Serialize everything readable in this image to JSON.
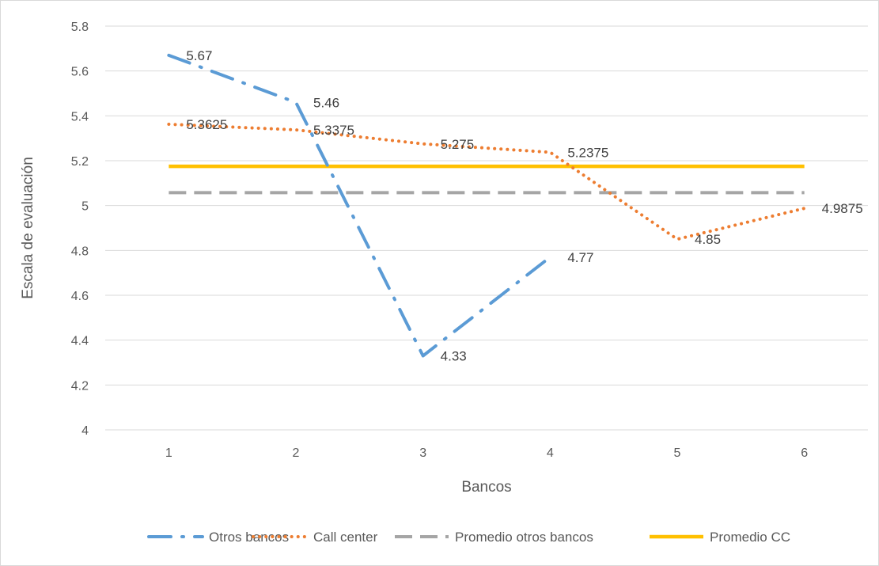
{
  "chart_data": {
    "type": "line",
    "title": "",
    "xlabel": "Bancos",
    "ylabel": "Escala de evaluación",
    "x": [
      1,
      2,
      3,
      4,
      5,
      6
    ],
    "x_tick_labels": [
      "1",
      "2",
      "3",
      "4",
      "5",
      "6"
    ],
    "ylim": [
      4,
      5.8
    ],
    "y_ticks": [
      4,
      4.2,
      4.4,
      4.6,
      4.8,
      5,
      5.2,
      5.4,
      5.6,
      5.8
    ],
    "y_tick_labels": [
      "4",
      "4.2",
      "4.4",
      "4.6",
      "4.8",
      "5",
      "5.2",
      "5.4",
      "5.6",
      "5.8"
    ],
    "grid": "horizontal",
    "legend_position": "bottom",
    "series": [
      {
        "name": "Otros bancos",
        "x": [
          1,
          2,
          3,
          4
        ],
        "values": [
          5.67,
          5.46,
          4.33,
          4.77
        ],
        "data_labels": [
          "5.67",
          "5.46",
          "4.33",
          "4.77"
        ],
        "color": "#5b9bd5",
        "style": "long-dash-dot"
      },
      {
        "name": "Call center",
        "x": [
          1,
          2,
          3,
          4,
          5,
          6
        ],
        "values": [
          5.3625,
          5.3375,
          5.275,
          5.2375,
          4.85,
          4.9875
        ],
        "data_labels": [
          "5.3625",
          "5.3375",
          "5.275",
          "5.2375",
          "4.85",
          "4.9875"
        ],
        "color": "#ed7d31",
        "style": "dotted"
      },
      {
        "name": "Promedio otros bancos",
        "x": [
          1,
          6
        ],
        "values": [
          5.0575,
          5.0575
        ],
        "data_labels": [],
        "color": "#a5a5a5",
        "style": "dashed"
      },
      {
        "name": "Promedio CC",
        "x": [
          1,
          6
        ],
        "values": [
          5.175,
          5.175
        ],
        "data_labels": [],
        "color": "#ffc000",
        "style": "solid"
      }
    ]
  }
}
